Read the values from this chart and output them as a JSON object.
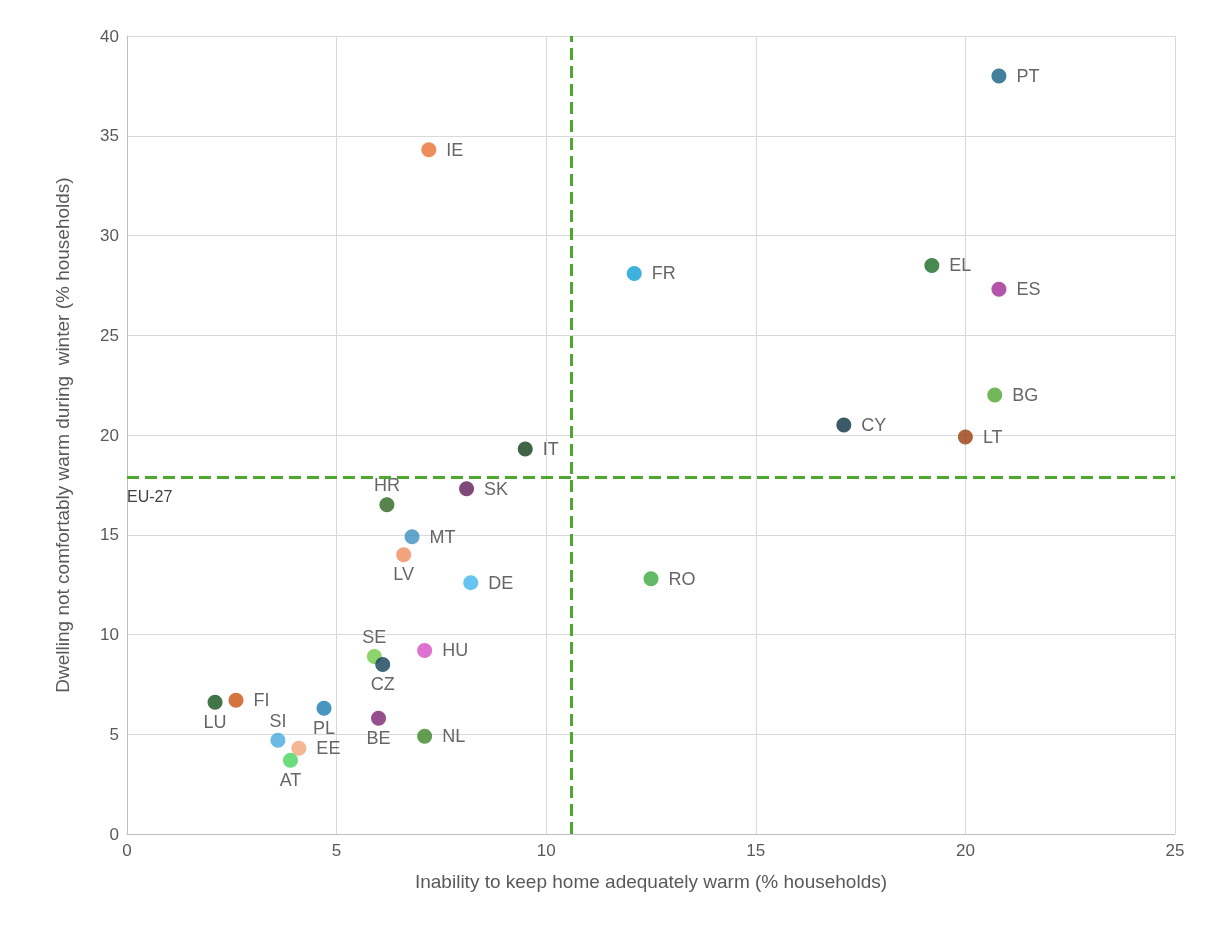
{
  "chart_data": {
    "type": "scatter",
    "xlabel": "Inability to keep home adequately warm (% households)",
    "ylabel": "Dwelling not comfortably warm during  winter (% households)",
    "xlim": [
      0,
      25
    ],
    "xticks": [
      0,
      5,
      10,
      15,
      20,
      25
    ],
    "ylim": [
      0,
      40
    ],
    "yticks": [
      0,
      5,
      10,
      15,
      20,
      25,
      30,
      35,
      40
    ],
    "grid": true,
    "legend": false,
    "marker": "circle",
    "ref_lines": [
      {
        "axis": "x",
        "value": 10.6,
        "color": "#4ea72e",
        "line_style": "dashed"
      },
      {
        "axis": "y",
        "value": 17.9,
        "label": "EU-27",
        "color": "#4ea72e",
        "line_style": "dashed"
      }
    ],
    "series": [
      {
        "name": "PT",
        "color": "#156082",
        "x": [
          20.8
        ],
        "values": [
          38.0
        ]
      },
      {
        "name": "IE",
        "color": "#e97132",
        "x": [
          7.2
        ],
        "values": [
          34.3
        ]
      },
      {
        "name": "FR",
        "color": "#0f9ed5",
        "x": [
          12.1
        ],
        "values": [
          28.1
        ]
      },
      {
        "name": "EL",
        "color": "#196b24",
        "x": [
          19.2
        ],
        "values": [
          28.5
        ]
      },
      {
        "name": "ES",
        "color": "#a02b93",
        "x": [
          20.8
        ],
        "values": [
          27.3
        ]
      },
      {
        "name": "BG",
        "color": "#4ea72e",
        "x": [
          20.7
        ],
        "values": [
          22.0
        ]
      },
      {
        "name": "CY",
        "color": "#0b3041",
        "x": [
          17.1
        ],
        "values": [
          20.5
        ]
      },
      {
        "name": "LT",
        "color": "#9a3e0f",
        "x": [
          20.0
        ],
        "values": [
          19.9
        ]
      },
      {
        "name": "IT",
        "color": "#0f3f17",
        "x": [
          9.5
        ],
        "values": [
          19.3
        ]
      },
      {
        "name": "SK",
        "color": "#601a58",
        "x": [
          8.1
        ],
        "values": [
          17.3
        ]
      },
      {
        "name": "HR",
        "color": "#2f6420",
        "x": [
          6.2
        ],
        "values": [
          16.5
        ]
      },
      {
        "name": "MT",
        "color": "#3b8fc0",
        "x": [
          6.8
        ],
        "values": [
          14.9
        ]
      },
      {
        "name": "LV",
        "color": "#ed8d5b",
        "x": [
          6.6
        ],
        "values": [
          14.0
        ]
      },
      {
        "name": "DE",
        "color": "#3fb6ec",
        "x": [
          8.2
        ],
        "values": [
          12.6
        ]
      },
      {
        "name": "RO",
        "color": "#3aa93e",
        "x": [
          12.5
        ],
        "values": [
          12.8
        ]
      },
      {
        "name": "HU",
        "color": "#d64fc6",
        "x": [
          7.1
        ],
        "values": [
          9.2
        ]
      },
      {
        "name": "SE",
        "color": "#6fcb47",
        "x": [
          5.9
        ],
        "values": [
          8.9
        ]
      },
      {
        "name": "CZ",
        "color": "#11405a",
        "x": [
          6.1
        ],
        "values": [
          8.5
        ]
      },
      {
        "name": "LU",
        "color": "#13521c",
        "x": [
          2.1
        ],
        "values": [
          6.6
        ]
      },
      {
        "name": "FI",
        "color": "#c9520f",
        "x": [
          2.6
        ],
        "values": [
          6.7
        ]
      },
      {
        "name": "PL",
        "color": "#1a7bb0",
        "x": [
          4.7
        ],
        "values": [
          6.3
        ]
      },
      {
        "name": "BE",
        "color": "#7b2370",
        "x": [
          6.0
        ],
        "values": [
          5.8
        ]
      },
      {
        "name": "NL",
        "color": "#3b8427",
        "x": [
          7.1
        ],
        "values": [
          4.9
        ]
      },
      {
        "name": "SI",
        "color": "#46a9e0",
        "x": [
          3.6
        ],
        "values": [
          4.7
        ]
      },
      {
        "name": "EE",
        "color": "#f1a47b",
        "x": [
          4.1
        ],
        "values": [
          4.3
        ]
      },
      {
        "name": "AT",
        "color": "#47d35d",
        "x": [
          3.9
        ],
        "values": [
          3.7
        ]
      }
    ]
  }
}
